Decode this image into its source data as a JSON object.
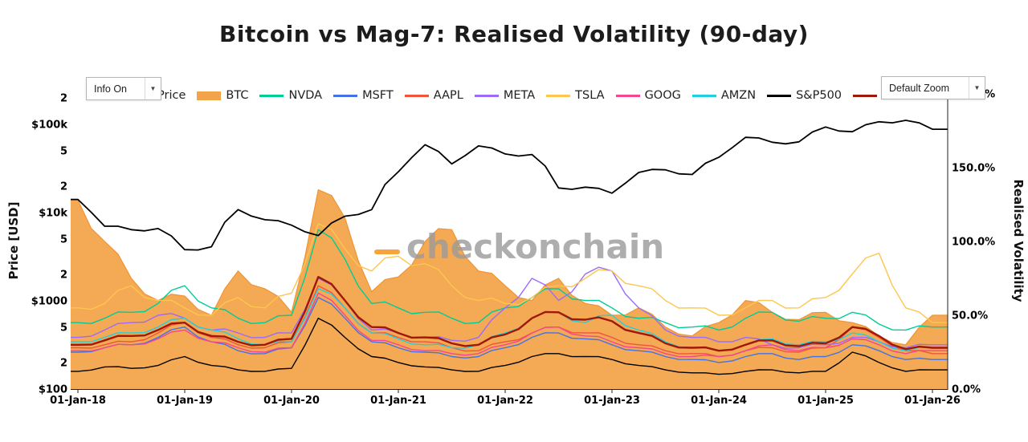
{
  "title": "Bitcoin vs Mag-7: Realised Volatility (90-day)",
  "controls": {
    "info_dropdown": "Info On",
    "zoom_dropdown": "Default Zoom",
    "dropdown_arrow": "▼"
  },
  "watermark": {
    "text": "checkonchain",
    "dash_color": "#f7931a",
    "text_color": "#9b9b9b"
  },
  "legend": {
    "items": [
      {
        "label": "Price",
        "color": "#000000",
        "shape": "line"
      },
      {
        "label": "BTC",
        "color": "#f3a44b",
        "shape": "bar"
      },
      {
        "label": "NVDA",
        "color": "#00cc96",
        "shape": "line"
      },
      {
        "label": "MSFT",
        "color": "#4472e4",
        "shape": "line"
      },
      {
        "label": "AAPL",
        "color": "#ef553b",
        "shape": "line"
      },
      {
        "label": "META",
        "color": "#9b6bfa",
        "shape": "line"
      },
      {
        "label": "TSLA",
        "color": "#fdc64f",
        "shape": "line"
      },
      {
        "label": "GOOG",
        "color": "#f5478f",
        "shape": "line"
      },
      {
        "label": "AMZN",
        "color": "#21d0e0",
        "shape": "line"
      },
      {
        "label": "S&P500",
        "color": "#000000",
        "shape": "line"
      },
      {
        "label": "",
        "color": "#a01808",
        "shape": "line"
      }
    ]
  },
  "chart_data": {
    "type": "line",
    "title": "Bitcoin vs Mag-7: Realised Volatility (90-day)",
    "x_axis": {
      "unit": "date",
      "tick_years": [
        2018,
        2019,
        2020,
        2021,
        2022,
        2023,
        2024,
        2025,
        2026
      ],
      "tick_labels": [
        "01-Jan-18",
        "01-Jan-19",
        "01-Jan-20",
        "01-Jan-21",
        "01-Jan-22",
        "01-Jan-23",
        "01-Jan-24",
        "01-Jan-25",
        "01-Jan-26"
      ]
    },
    "y_left_axis": {
      "title": "Price [USD]",
      "scale": "log",
      "ticks": {
        "values": [
          100,
          200,
          500,
          1000,
          2000,
          5000,
          10000,
          20000,
          50000,
          100000,
          200000
        ],
        "labels": [
          "$100",
          "2",
          "5",
          "$1000",
          "2",
          "5",
          "$10k",
          "2",
          "5",
          "$100k",
          "2"
        ]
      }
    },
    "y_right_axis": {
      "title": "Realised Volatility",
      "scale": "linear",
      "unit": "%",
      "ticks": {
        "values": [
          0,
          50,
          100,
          150,
          200
        ],
        "labels": [
          "0.0%",
          "50.0%",
          "100.0%",
          "150.0%",
          "200.0%"
        ]
      }
    },
    "x": [
      2018.0,
      2018.25,
      2018.5,
      2018.75,
      2019.0,
      2019.25,
      2019.5,
      2019.75,
      2020.0,
      2020.25,
      2020.5,
      2020.75,
      2021.0,
      2021.25,
      2021.5,
      2021.75,
      2022.0,
      2022.25,
      2022.5,
      2022.75,
      2023.0,
      2023.25,
      2023.5,
      2023.75,
      2024.0,
      2024.25,
      2024.5,
      2024.75,
      2025.0,
      2025.25,
      2025.5,
      2025.75,
      2026.0
    ],
    "price_series": {
      "name": "Price",
      "asset": "BTC",
      "axis": "left",
      "color": "#000000",
      "line_width": 1.8,
      "values_usd": [
        14100,
        7000,
        6400,
        6600,
        3800,
        4100,
        10800,
        8300,
        7200,
        5500,
        9100,
        10800,
        29000,
        58800,
        35600,
        57000,
        46200,
        45500,
        19000,
        19400,
        16600,
        28500,
        30500,
        27000,
        42300,
        71300,
        62700,
        63300,
        93400,
        82500,
        107000,
        111000,
        88000
      ]
    },
    "volatility_series": [
      {
        "name": "BTC",
        "color": "#ef9434",
        "fill": "#f3a44b",
        "line_width": 1.2,
        "values_pct": [
          128,
          100,
          75,
          60,
          63,
          50,
          80,
          68,
          52,
          135,
          116,
          66,
          76,
          100,
          108,
          80,
          70,
          60,
          75,
          58,
          50,
          55,
          42,
          36,
          45,
          60,
          52,
          47,
          52,
          45,
          36,
          30,
          50
        ]
      },
      {
        "name": "NVDA",
        "color": "#00cc96",
        "line_width": 1.4,
        "values_pct": [
          45,
          48,
          52,
          58,
          70,
          55,
          48,
          45,
          50,
          108,
          88,
          58,
          55,
          52,
          48,
          45,
          55,
          62,
          68,
          60,
          55,
          48,
          45,
          42,
          40,
          48,
          52,
          46,
          48,
          52,
          44,
          40,
          42
        ]
      },
      {
        "name": "MSFT",
        "color": "#4472e4",
        "line_width": 1.4,
        "values_pct": [
          25,
          28,
          30,
          35,
          42,
          32,
          26,
          24,
          28,
          62,
          48,
          32,
          28,
          25,
          22,
          22,
          28,
          35,
          38,
          34,
          30,
          26,
          22,
          20,
          18,
          22,
          24,
          20,
          22,
          30,
          26,
          20,
          20
        ]
      },
      {
        "name": "AAPL",
        "color": "#ef553b",
        "line_width": 1.4,
        "values_pct": [
          28,
          30,
          32,
          38,
          45,
          35,
          30,
          28,
          32,
          70,
          55,
          38,
          35,
          32,
          28,
          26,
          32,
          38,
          42,
          38,
          35,
          30,
          26,
          24,
          22,
          26,
          28,
          25,
          28,
          42,
          35,
          26,
          24
        ]
      },
      {
        "name": "META",
        "color": "#9b6bfa",
        "line_width": 1.4,
        "values_pct": [
          35,
          40,
          45,
          50,
          48,
          40,
          38,
          35,
          38,
          75,
          60,
          40,
          38,
          35,
          33,
          35,
          55,
          75,
          60,
          78,
          80,
          55,
          40,
          35,
          32,
          35,
          30,
          28,
          30,
          35,
          32,
          28,
          30
        ]
      },
      {
        "name": "TSLA",
        "color": "#fdc64f",
        "line_width": 1.4,
        "values_pct": [
          55,
          58,
          70,
          60,
          55,
          50,
          62,
          55,
          65,
          112,
          95,
          80,
          90,
          85,
          70,
          60,
          58,
          62,
          70,
          75,
          80,
          70,
          60,
          55,
          50,
          55,
          60,
          55,
          62,
          78,
          92,
          55,
          45
        ]
      },
      {
        "name": "GOOG",
        "color": "#f5478f",
        "line_width": 1.4,
        "values_pct": [
          26,
          28,
          30,
          34,
          40,
          32,
          28,
          25,
          28,
          65,
          50,
          33,
          30,
          26,
          24,
          24,
          30,
          38,
          42,
          36,
          32,
          28,
          24,
          22,
          22,
          26,
          30,
          26,
          28,
          34,
          30,
          24,
          26
        ]
      },
      {
        "name": "AMZN",
        "color": "#21d0e0",
        "line_width": 1.4,
        "values_pct": [
          32,
          35,
          38,
          42,
          48,
          40,
          34,
          30,
          32,
          68,
          55,
          38,
          34,
          30,
          28,
          30,
          38,
          48,
          52,
          45,
          50,
          40,
          32,
          28,
          26,
          30,
          34,
          30,
          32,
          38,
          32,
          26,
          28
        ]
      },
      {
        "name": "",
        "color": "#a01808",
        "line_width": 2.4,
        "values_pct": [
          30,
          33,
          36,
          40,
          45,
          36,
          32,
          30,
          34,
          76,
          60,
          42,
          38,
          35,
          31,
          30,
          37,
          48,
          52,
          47,
          46,
          38,
          31,
          28,
          26,
          30,
          33,
          29,
          31,
          42,
          36,
          27,
          28
        ]
      },
      {
        "name": "S&P500",
        "color": "#000000",
        "line_width": 1.4,
        "values_pct": [
          12,
          15,
          14,
          16,
          22,
          16,
          13,
          12,
          14,
          48,
          35,
          22,
          18,
          15,
          13,
          12,
          16,
          22,
          24,
          22,
          20,
          16,
          13,
          11,
          10,
          12,
          13,
          11,
          12,
          25,
          18,
          12,
          13
        ]
      }
    ]
  }
}
